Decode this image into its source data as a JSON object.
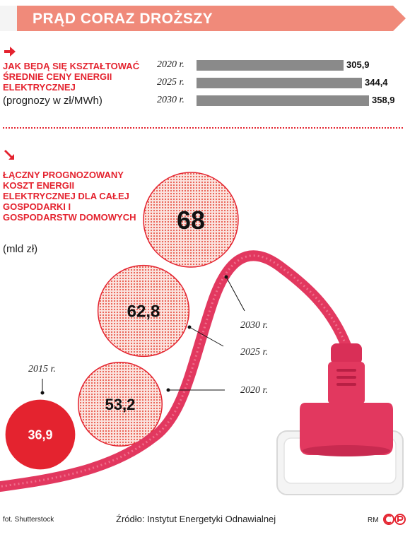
{
  "banner": {
    "title": "PRĄD CORAZ DROŻSZY"
  },
  "colors": {
    "accent": "#e4232f",
    "banner": "#f08a7a",
    "plug": "#e2385f",
    "bar": "#8a8a8a"
  },
  "icons": {
    "section1": "arrow-right-icon",
    "section2": "arrow-down-right-icon"
  },
  "chart_data": [
    {
      "type": "bar",
      "orientation": "horizontal",
      "title": "JAK BĘDĄ SIĘ KSZTAŁTOWAĆ ŚREDNIE CENY ENERGII ELEKTRYCZNEJ",
      "unit_label": "(prognozy w zł/MWh)",
      "categories": [
        "2020 r.",
        "2025 r.",
        "2030 r."
      ],
      "values": [
        305.9,
        344.4,
        358.9
      ],
      "value_labels": [
        "305,9",
        "344,4",
        "358,9"
      ],
      "xlim": [
        0,
        358.9
      ],
      "grid": false
    },
    {
      "type": "bubble",
      "title": "ŁĄCZNY PROGNOZOWANY KOSZT ENERGII ELEKTRYCZNEJ DLA CAŁEJ GOSPODARKI I GOSPODARSTW DOMOWYCH",
      "unit_label": "(mld zł)",
      "categories": [
        "2015 r.",
        "2020 r.",
        "2025 r.",
        "2030 r."
      ],
      "values": [
        36.9,
        53.2,
        62.8,
        68
      ],
      "value_labels": [
        "36,9",
        "53,2",
        "62,8",
        "68"
      ],
      "grid": false
    }
  ],
  "footer": {
    "photo_credit": "fot. Shutterstock",
    "source": "Źródło: Instytut Energetyki Odnawialnej",
    "author": "RM"
  }
}
